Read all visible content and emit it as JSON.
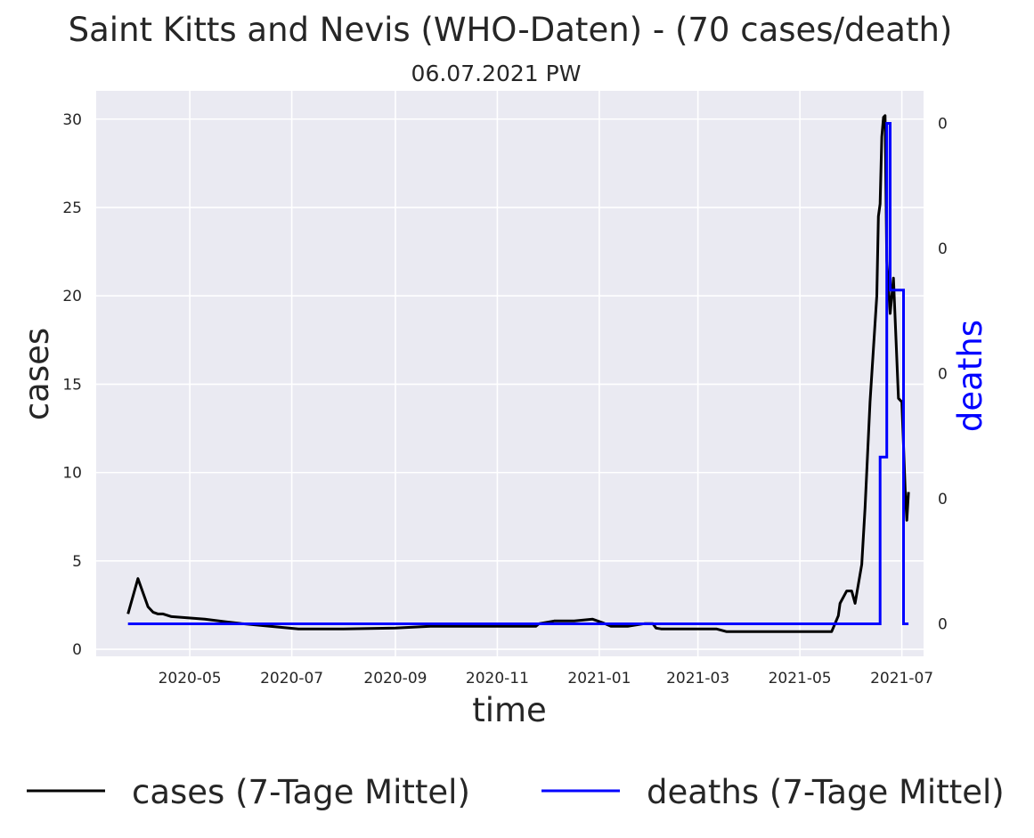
{
  "chart_data": {
    "type": "line",
    "title": "Saint Kitts and Nevis (WHO-Daten) - (70 cases/death)",
    "subtitle": "06.07.2021 PW",
    "xlabel": "time",
    "ylabel": "cases",
    "y2label": "deaths",
    "x_ticks": [
      "2020-05",
      "2020-07",
      "2020-09",
      "2020-11",
      "2021-01",
      "2021-03",
      "2021-05",
      "2021-07"
    ],
    "y_ticks": [
      "0",
      "5",
      "10",
      "15",
      "20",
      "25",
      "30"
    ],
    "y2_ticks": [
      "0",
      "0",
      "0",
      "0",
      "0"
    ],
    "ylim": [
      -0.4,
      31.6
    ],
    "grid": true,
    "legend": {
      "placement": "bottom",
      "entries": [
        "cases (7-Tage Mittel)",
        "deaths (7-Tage Mittel)"
      ]
    },
    "colors": {
      "cases": "#000000",
      "deaths": "#0000ff",
      "plot_bg": "#eaeaf2",
      "grid": "#ffffff"
    },
    "series": [
      {
        "name": "cases (7-Tage Mittel)",
        "axis": "left",
        "points": [
          [
            "2020-03-25",
            2.0
          ],
          [
            "2020-03-31",
            4.0
          ],
          [
            "2020-04-06",
            2.4
          ],
          [
            "2020-04-09",
            2.1
          ],
          [
            "2020-04-12",
            2.0
          ],
          [
            "2020-04-15",
            2.0
          ],
          [
            "2020-04-20",
            1.85
          ],
          [
            "2020-05-10",
            1.7
          ],
          [
            "2020-06-01",
            1.45
          ],
          [
            "2020-07-05",
            1.15
          ],
          [
            "2020-08-01",
            1.15
          ],
          [
            "2020-09-01",
            1.2
          ],
          [
            "2020-09-22",
            1.3
          ],
          [
            "2020-11-24",
            1.3
          ],
          [
            "2020-11-26",
            1.45
          ],
          [
            "2020-12-05",
            1.6
          ],
          [
            "2020-12-17",
            1.6
          ],
          [
            "2020-12-28",
            1.7
          ],
          [
            "2021-01-03",
            1.5
          ],
          [
            "2021-01-08",
            1.3
          ],
          [
            "2021-01-18",
            1.3
          ],
          [
            "2021-01-28",
            1.45
          ],
          [
            "2021-02-02",
            1.45
          ],
          [
            "2021-02-04",
            1.2
          ],
          [
            "2021-02-07",
            1.15
          ],
          [
            "2021-03-12",
            1.15
          ],
          [
            "2021-03-18",
            1.0
          ],
          [
            "2021-05-20",
            1.0
          ],
          [
            "2021-05-24",
            1.9
          ],
          [
            "2021-05-25",
            2.6
          ],
          [
            "2021-05-29",
            3.3
          ],
          [
            "2021-06-01",
            3.3
          ],
          [
            "2021-06-03",
            2.6
          ],
          [
            "2021-06-07",
            4.8
          ],
          [
            "2021-06-09",
            8.0
          ],
          [
            "2021-06-12",
            14.0
          ],
          [
            "2021-06-14",
            17.0
          ],
          [
            "2021-06-16",
            20.0
          ],
          [
            "2021-06-17",
            24.5
          ],
          [
            "2021-06-18",
            25.2
          ],
          [
            "2021-06-19",
            29.0
          ],
          [
            "2021-06-20",
            30.1
          ],
          [
            "2021-06-21",
            30.2
          ],
          [
            "2021-06-22",
            22.0
          ],
          [
            "2021-06-24",
            19.0
          ],
          [
            "2021-06-26",
            21.0
          ],
          [
            "2021-06-29",
            14.2
          ],
          [
            "2021-07-01",
            14.0
          ],
          [
            "2021-07-03",
            9.0
          ],
          [
            "2021-07-04",
            7.3
          ],
          [
            "2021-07-05",
            8.9
          ]
        ]
      },
      {
        "name": "deaths (7-Tage Mittel)",
        "axis": "right",
        "points": [
          [
            "2020-03-25",
            0.0
          ],
          [
            "2021-06-18",
            0.0
          ],
          [
            "2021-06-18",
            0.1
          ],
          [
            "2021-06-22",
            0.1
          ],
          [
            "2021-06-22",
            0.3
          ],
          [
            "2021-06-24",
            0.3
          ],
          [
            "2021-06-24",
            0.2
          ],
          [
            "2021-07-02",
            0.2
          ],
          [
            "2021-07-02",
            0.0
          ],
          [
            "2021-07-05",
            0.0
          ]
        ]
      }
    ]
  }
}
